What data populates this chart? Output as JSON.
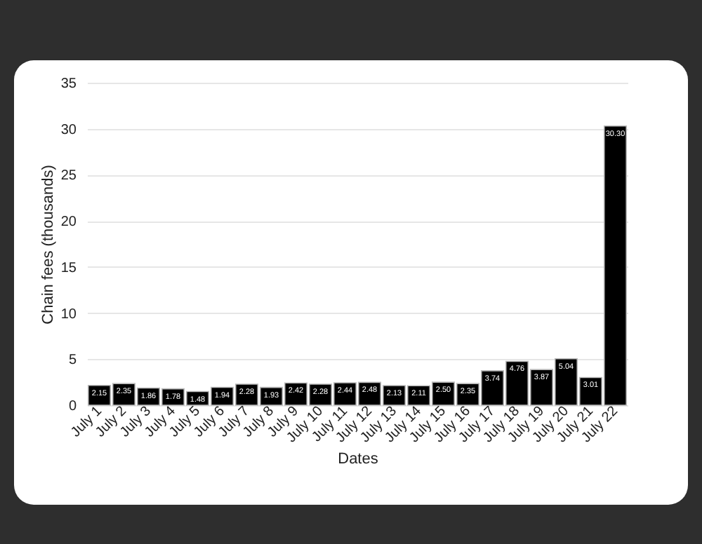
{
  "chart_data": {
    "type": "bar",
    "xlabel": "Dates",
    "ylabel": "Chain fees (thousands)",
    "categories": [
      "July 1",
      "July 2",
      "July 3",
      "July 4",
      "July 5",
      "July 6",
      "July 7",
      "July 8",
      "July 9",
      "July 10",
      "July 11",
      "July 12",
      "July 13",
      "July 14",
      "July 15",
      "July 16",
      "July 17",
      "July 18",
      "July 19",
      "July 20",
      "July 21",
      "July 22"
    ],
    "values": [
      2.15,
      2.35,
      1.86,
      1.78,
      1.48,
      1.94,
      2.28,
      1.93,
      2.42,
      2.28,
      2.44,
      2.48,
      2.13,
      2.11,
      2.5,
      2.35,
      3.74,
      4.76,
      3.87,
      5.04,
      3.01,
      30.3
    ],
    "value_labels": [
      "2.15",
      "2.35",
      "1.86",
      "1.78",
      "1.48",
      "1.94",
      "2.28",
      "1.93",
      "2.42",
      "2.28",
      "2.44",
      "2.48",
      "2.13",
      "2.11",
      "2.50",
      "2.35",
      "3.74",
      "4.76",
      "3.87",
      "5.04",
      "3.01",
      "30.30"
    ],
    "color": "#000000",
    "ylim": [
      0,
      35
    ],
    "yticks": [
      0,
      5,
      10,
      15,
      20,
      25,
      30,
      35
    ],
    "grid": "y"
  }
}
